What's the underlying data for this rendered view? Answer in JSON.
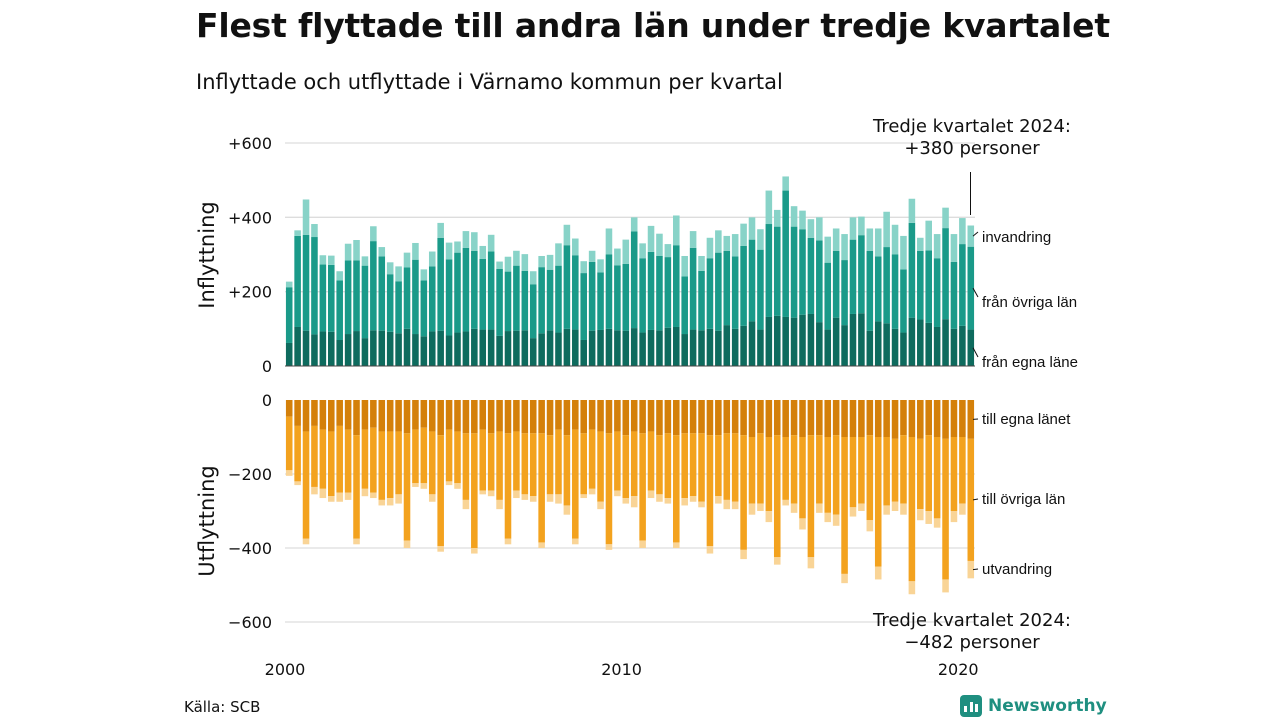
{
  "header": {
    "title": "Flest flyttade till andra län under tredje kvartalet",
    "subtitle": "Inflyttade och utflyttade i Värnamo kommun per kvartal"
  },
  "footer": {
    "source": "Källa: SCB",
    "brand": "Newsworthy"
  },
  "chart_data": [
    {
      "type": "bar",
      "stacked": true,
      "ylabel": "Inflyttning",
      "ylim": [
        0,
        600
      ],
      "yticks": [
        0,
        200,
        400,
        600
      ],
      "ytick_labels": [
        "0",
        "+200",
        "+400",
        "+600"
      ],
      "grid": true,
      "annotation": [
        "Tredje kvartalet 2024:",
        "+380 personer"
      ],
      "series": [
        {
          "name": "från egna läne",
          "color": "#0e6b5e",
          "values": [
            62,
            105,
            95,
            85,
            93,
            92,
            70,
            86,
            94,
            75,
            96,
            95,
            92,
            88,
            100,
            86,
            80,
            93,
            95,
            82,
            90,
            93,
            100,
            98,
            98,
            81,
            94,
            95,
            96,
            75,
            88,
            96,
            90,
            100,
            98,
            70,
            95,
            97,
            100,
            96,
            95,
            102,
            90,
            97,
            96,
            103,
            105,
            86,
            98,
            96,
            100,
            95,
            110,
            100,
            108,
            120,
            98,
            132,
            135,
            132,
            130,
            138,
            140,
            118,
            98,
            130,
            110,
            140,
            142,
            95,
            120,
            115,
            100,
            90,
            130,
            125,
            116,
            105,
            126,
            100,
            108,
            98
          ]
        },
        {
          "name": "från övriga län",
          "color": "#1a9a89",
          "values": [
            150,
            245,
            258,
            262,
            180,
            180,
            160,
            198,
            190,
            195,
            240,
            200,
            155,
            140,
            165,
            200,
            150,
            175,
            250,
            205,
            215,
            225,
            210,
            190,
            210,
            180,
            160,
            175,
            160,
            145,
            178,
            163,
            180,
            225,
            200,
            180,
            185,
            155,
            200,
            175,
            180,
            260,
            200,
            210,
            200,
            190,
            220,
            155,
            220,
            160,
            190,
            210,
            200,
            195,
            215,
            220,
            215,
            250,
            240,
            340,
            245,
            230,
            205,
            220,
            180,
            180,
            175,
            200,
            210,
            215,
            175,
            205,
            200,
            170,
            255,
            185,
            195,
            185,
            245,
            180,
            220,
            223
          ]
        },
        {
          "name": "invandring",
          "color": "#88d3c8",
          "values": [
            15,
            15,
            95,
            35,
            25,
            25,
            25,
            45,
            55,
            25,
            40,
            25,
            32,
            40,
            40,
            45,
            30,
            40,
            40,
            45,
            30,
            45,
            50,
            35,
            45,
            20,
            40,
            40,
            45,
            35,
            30,
            40,
            60,
            55,
            45,
            32,
            30,
            35,
            70,
            45,
            65,
            38,
            40,
            70,
            60,
            35,
            80,
            55,
            45,
            40,
            55,
            60,
            40,
            60,
            60,
            60,
            55,
            90,
            45,
            38,
            55,
            50,
            50,
            62,
            70,
            60,
            70,
            60,
            50,
            60,
            75,
            95,
            80,
            90,
            65,
            35,
            80,
            65,
            55,
            75,
            70,
            57
          ]
        }
      ]
    },
    {
      "type": "bar",
      "stacked": true,
      "ylabel": "Utflyttning",
      "ylim": [
        -600,
        0
      ],
      "yticks": [
        0,
        -200,
        -400,
        -600
      ],
      "ytick_labels": [
        "0",
        "−200",
        "−400",
        "−600"
      ],
      "grid": true,
      "annotation": [
        "Tredje kvartalet 2024:",
        "−482 personer"
      ],
      "series": [
        {
          "name": "till egna länet",
          "color": "#d4800a",
          "values": [
            -45,
            -70,
            -85,
            -70,
            -80,
            -85,
            -70,
            -80,
            -95,
            -80,
            -75,
            -85,
            -85,
            -85,
            -90,
            -80,
            -75,
            -85,
            -95,
            -80,
            -85,
            -90,
            -90,
            -80,
            -90,
            -85,
            -90,
            -85,
            -90,
            -90,
            -90,
            -95,
            -80,
            -95,
            -80,
            -90,
            -80,
            -85,
            -90,
            -85,
            -95,
            -85,
            -90,
            -85,
            -95,
            -90,
            -95,
            -90,
            -90,
            -90,
            -95,
            -95,
            -90,
            -90,
            -95,
            -100,
            -90,
            -100,
            -95,
            -100,
            -95,
            -100,
            -95,
            -95,
            -100,
            -95,
            -100,
            -100,
            -100,
            -95,
            -100,
            -100,
            -105,
            -95,
            -100,
            -105,
            -95,
            -100,
            -105,
            -100,
            -100,
            -105
          ]
        },
        {
          "name": "till övriga län",
          "color": "#f3a21e",
          "values": [
            -145,
            -150,
            -290,
            -165,
            -160,
            -175,
            -180,
            -170,
            -280,
            -160,
            -175,
            -185,
            -180,
            -170,
            -290,
            -145,
            -150,
            -170,
            -300,
            -140,
            -140,
            -180,
            -310,
            -165,
            -155,
            -185,
            -285,
            -160,
            -165,
            -170,
            -295,
            -160,
            -175,
            -190,
            -295,
            -165,
            -160,
            -190,
            -300,
            -160,
            -170,
            -175,
            -290,
            -160,
            -160,
            -175,
            -290,
            -175,
            -170,
            -185,
            -300,
            -165,
            -180,
            -185,
            -310,
            -180,
            -190,
            -200,
            -330,
            -170,
            -185,
            -220,
            -330,
            -185,
            -205,
            -215,
            -370,
            -190,
            -180,
            -230,
            -350,
            -185,
            -170,
            -185,
            -390,
            -190,
            -205,
            -220,
            -380,
            -200,
            -180,
            -330
          ]
        },
        {
          "name": "utvandring",
          "color": "#f9d496",
          "values": [
            -15,
            -10,
            -15,
            -20,
            -25,
            -15,
            -25,
            -20,
            -15,
            -20,
            -15,
            -15,
            -20,
            -25,
            -20,
            -10,
            -15,
            -20,
            -15,
            -10,
            -15,
            -25,
            -15,
            -10,
            -15,
            -25,
            -15,
            -20,
            -15,
            -15,
            -15,
            -20,
            -25,
            -25,
            -15,
            -10,
            -15,
            -20,
            -15,
            -15,
            -15,
            -30,
            -20,
            -20,
            -20,
            -15,
            -15,
            -20,
            -15,
            -15,
            -20,
            -20,
            -25,
            -20,
            -25,
            -30,
            -20,
            -30,
            -20,
            -15,
            -25,
            -30,
            -30,
            -25,
            -25,
            -30,
            -25,
            -25,
            -20,
            -30,
            -35,
            -25,
            -25,
            -30,
            -35,
            -30,
            -35,
            -25,
            -35,
            -30,
            -30,
            -47
          ]
        }
      ]
    }
  ],
  "x_axis": {
    "start_year": 2000,
    "ticks": [
      "2000",
      "2010",
      "2020"
    ]
  }
}
